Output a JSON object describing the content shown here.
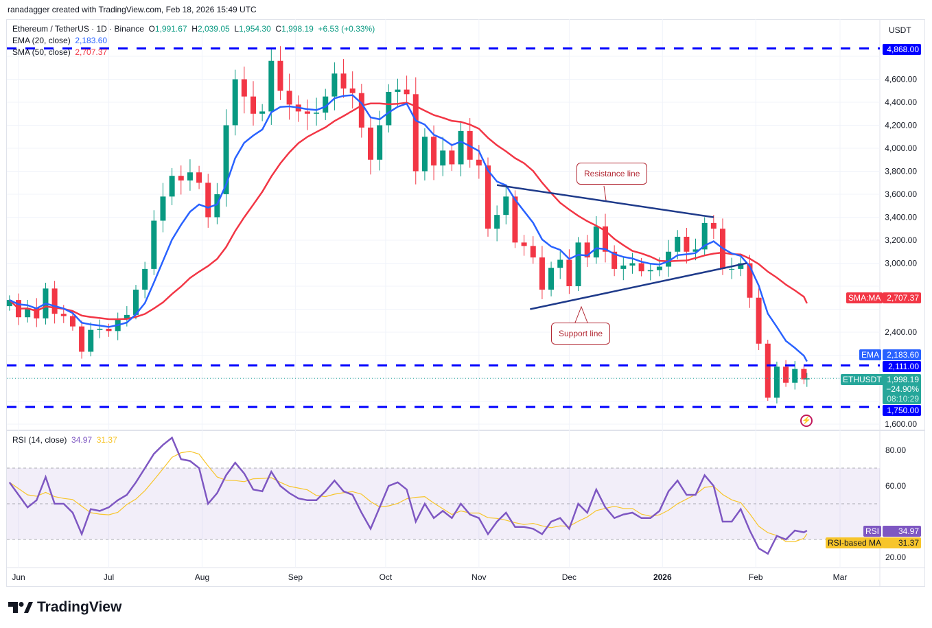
{
  "credit": "ranadagger created with TradingView.com, Feb 18, 2026 15:49 UTC",
  "symbol": {
    "name": "Ethereum / TetherUS · 1D · Binance",
    "o_label": "O",
    "o": "1,991.67",
    "h_label": "H",
    "h": "2,039.05",
    "l_label": "L",
    "l": "1,954.30",
    "c_label": "C",
    "c": "1,998.19",
    "change": "+6.53 (+0.33%)"
  },
  "indicators": {
    "ema_label": "EMA (20, close)",
    "ema_value": "2,183.60",
    "sma_label": "SMA (50, close)",
    "sma_value": "2,707.37",
    "rsi_label": "RSI (14, close)",
    "rsi_value": "34.97",
    "rsi_ma_value": "31.37"
  },
  "axis": {
    "currency": "USDT"
  },
  "price_tags": {
    "level_top": "4,868.00",
    "sma_tag": "SMA:MA",
    "sma": "2,707.37",
    "ema_tag": "EMA",
    "ema": "2,183.60",
    "level_mid": "2,111.00",
    "symbol_tag": "ETHUSDT",
    "last": "1,998.19",
    "last_pct": "−24.90%",
    "countdown": "08:10:29",
    "level_low": "1,750.00",
    "rsi_tag": "RSI",
    "rsi": "34.97",
    "rsi_ma_tag": "RSI-based MA",
    "rsi_ma": "31.37"
  },
  "annotations": {
    "resistance": "Resistance line",
    "support": "Support line"
  },
  "brand": "TradingView",
  "colors": {
    "up": "#089981",
    "down": "#f23645",
    "ema": "#2962ff",
    "sma": "#f23645",
    "level": "#0000ff",
    "trend": "#1e3a8a",
    "rsi": "#7e57c2",
    "rsi_ma": "#f7c52b"
  },
  "chart_data": {
    "type": "candlestick",
    "y_ticks": [
      1600,
      1800,
      2000,
      2200,
      2400,
      2600,
      2800,
      3000,
      3200,
      3400,
      3600,
      3800,
      4000,
      4200,
      4400,
      4600,
      4800
    ],
    "ylim": [
      1600,
      4800
    ],
    "x_ticks": [
      {
        "label": "Jun",
        "date": "2025-06-01"
      },
      {
        "label": "Jul",
        "date": "2025-07-01"
      },
      {
        "label": "Aug",
        "date": "2025-08-01"
      },
      {
        "label": "Sep",
        "date": "2025-09-01"
      },
      {
        "label": "Oct",
        "date": "2025-10-01"
      },
      {
        "label": "Nov",
        "date": "2025-11-01"
      },
      {
        "label": "Dec",
        "date": "2025-12-01"
      },
      {
        "label": "2026",
        "date": "2026-01-01"
      },
      {
        "label": "Feb",
        "date": "2026-02-01"
      },
      {
        "label": "Mar",
        "date": "2026-03-01"
      }
    ],
    "horizontal_levels": [
      4868,
      2111,
      1750
    ],
    "trendlines": [
      {
        "label": "Resistance line",
        "from": [
          "2025-11-07",
          3680
        ],
        "to": [
          "2026-01-18",
          3400
        ]
      },
      {
        "label": "Support line",
        "from": [
          "2025-11-18",
          2600
        ],
        "to": [
          "2026-01-29",
          3000
        ]
      }
    ],
    "x": [
      "2025-05-29",
      "2025-06-01",
      "2025-06-04",
      "2025-06-07",
      "2025-06-10",
      "2025-06-13",
      "2025-06-16",
      "2025-06-19",
      "2025-06-22",
      "2025-06-25",
      "2025-06-28",
      "2025-07-01",
      "2025-07-04",
      "2025-07-07",
      "2025-07-10",
      "2025-07-13",
      "2025-07-16",
      "2025-07-19",
      "2025-07-22",
      "2025-07-25",
      "2025-07-28",
      "2025-07-31",
      "2025-08-03",
      "2025-08-06",
      "2025-08-09",
      "2025-08-12",
      "2025-08-15",
      "2025-08-18",
      "2025-08-21",
      "2025-08-24",
      "2025-08-27",
      "2025-08-30",
      "2025-09-02",
      "2025-09-05",
      "2025-09-08",
      "2025-09-11",
      "2025-09-14",
      "2025-09-17",
      "2025-09-20",
      "2025-09-23",
      "2025-09-26",
      "2025-09-29",
      "2025-10-02",
      "2025-10-05",
      "2025-10-08",
      "2025-10-11",
      "2025-10-14",
      "2025-10-17",
      "2025-10-20",
      "2025-10-23",
      "2025-10-26",
      "2025-10-29",
      "2025-11-01",
      "2025-11-04",
      "2025-11-07",
      "2025-11-10",
      "2025-11-13",
      "2025-11-16",
      "2025-11-19",
      "2025-11-22",
      "2025-11-25",
      "2025-11-28",
      "2025-12-01",
      "2025-12-04",
      "2025-12-07",
      "2025-12-10",
      "2025-12-13",
      "2025-12-16",
      "2025-12-19",
      "2025-12-22",
      "2025-12-25",
      "2025-12-28",
      "2025-12-31",
      "2026-01-03",
      "2026-01-06",
      "2026-01-09",
      "2026-01-12",
      "2026-01-15",
      "2026-01-18",
      "2026-01-21",
      "2026-01-24",
      "2026-01-27",
      "2026-01-30",
      "2026-02-02",
      "2026-02-05",
      "2026-02-08",
      "2026-02-11",
      "2026-02-14",
      "2026-02-17",
      "2026-02-18"
    ],
    "close": [
      2680,
      2530,
      2610,
      2520,
      2780,
      2560,
      2540,
      2450,
      2230,
      2420,
      2430,
      2410,
      2510,
      2550,
      2770,
      2950,
      3370,
      3580,
      3760,
      3720,
      3790,
      3700,
      3400,
      3600,
      4200,
      4600,
      4450,
      4300,
      4320,
      4760,
      4500,
      4380,
      4320,
      4300,
      4310,
      4450,
      4650,
      4520,
      4480,
      4180,
      3900,
      4200,
      4490,
      4510,
      4470,
      3800,
      4100,
      3850,
      3980,
      3860,
      4150,
      3900,
      3850,
      3300,
      3420,
      3580,
      3180,
      3150,
      3050,
      2770,
      2960,
      3030,
      2800,
      3180,
      3050,
      3320,
      3100,
      2950,
      2980,
      3000,
      2930,
      2940,
      2970,
      3100,
      3230,
      3100,
      3120,
      3350,
      3300,
      2950,
      2950,
      3000,
      2700,
      2300,
      1830,
      2100,
      1960,
      2080,
      1990,
      1998.19
    ],
    "rsi": [
      62,
      55,
      48,
      52,
      65,
      50,
      50,
      45,
      33,
      47,
      46,
      48,
      52,
      55,
      62,
      70,
      78,
      83,
      87,
      75,
      74,
      70,
      50,
      56,
      66,
      73,
      67,
      58,
      57,
      68,
      60,
      56,
      53,
      52,
      52,
      57,
      63,
      57,
      55,
      45,
      36,
      48,
      60,
      62,
      58,
      40,
      50,
      42,
      46,
      42,
      50,
      44,
      42,
      33,
      40,
      45,
      37,
      37,
      36,
      33,
      40,
      42,
      36,
      50,
      45,
      58,
      48,
      42,
      44,
      45,
      42,
      42,
      46,
      57,
      63,
      55,
      55,
      66,
      60,
      40,
      40,
      47,
      35,
      25,
      22,
      32,
      30,
      35,
      34,
      34.97
    ],
    "rsi_ticks": [
      20,
      40,
      60,
      80
    ],
    "rsi_ylim": [
      10,
      90
    ],
    "rsi_bands": [
      70,
      50,
      30
    ]
  }
}
